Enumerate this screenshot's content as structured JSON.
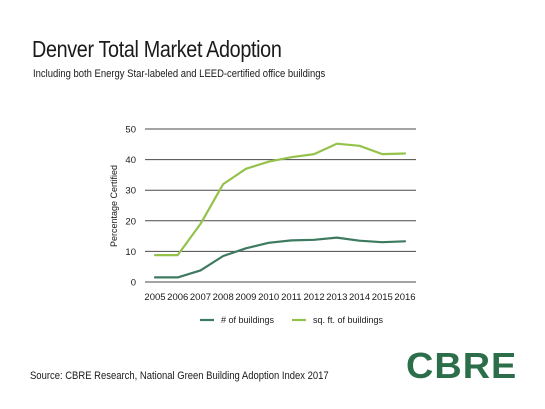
{
  "title": "Denver Total Market Adoption",
  "subtitle": "Including both Energy Star-labeled and LEED-certified office buildings",
  "source": "Source: CBRE Research, National Green Building Adoption Index 2017",
  "logo_text": "CBRE",
  "colors": {
    "brand": "#2c6e4a",
    "series_buildings": "#3d7a60",
    "series_sqft": "#94c24a",
    "grid": "#4a4a4a"
  },
  "chart_data": {
    "type": "line",
    "title": "Denver Total Market Adoption",
    "subtitle": "Including both Energy Star-labeled and LEED-certified office buildings",
    "xlabel": "",
    "ylabel": "Percentage Certified",
    "x": [
      "2005",
      "2006",
      "2007",
      "2008",
      "2009",
      "2010",
      "2011",
      "2012",
      "2013",
      "2014",
      "2015",
      "2016"
    ],
    "ylim": [
      0,
      50
    ],
    "yticks": [
      0,
      10,
      20,
      30,
      40,
      50
    ],
    "grid": true,
    "legend": "bottom",
    "series": [
      {
        "name": "# of buildings",
        "color": "#3d7a60",
        "values": [
          1.5,
          1.5,
          3.8,
          8.5,
          11.0,
          12.8,
          13.6,
          13.8,
          14.5,
          13.5,
          13.0,
          13.3
        ]
      },
      {
        "name": "sq. ft. of buildings",
        "color": "#94c24a",
        "values": [
          8.8,
          8.8,
          19.0,
          32.0,
          37.0,
          39.3,
          40.8,
          41.8,
          45.2,
          44.5,
          41.8,
          42.0
        ]
      }
    ]
  }
}
